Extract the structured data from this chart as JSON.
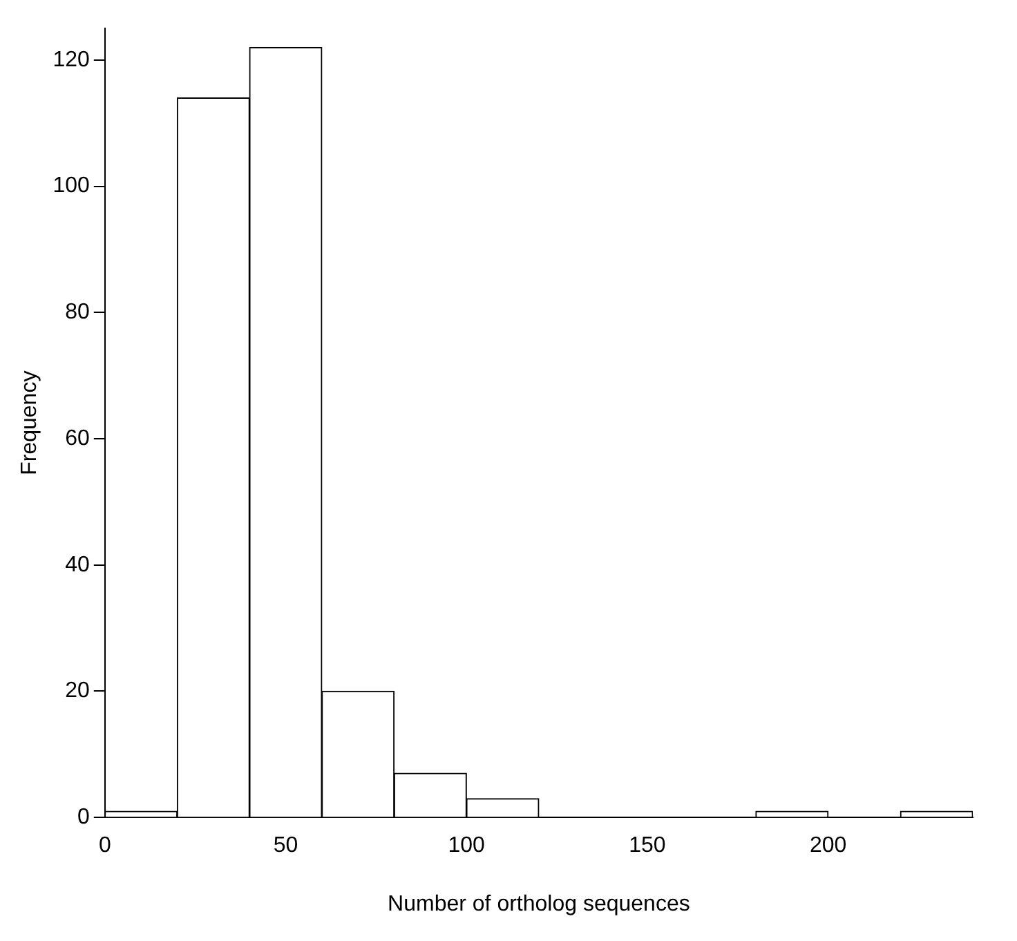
{
  "chart_data": {
    "type": "histogram",
    "xlabel": "Number of ortholog sequences",
    "ylabel": "Frequency",
    "bins": [
      0,
      20,
      40,
      60,
      80,
      100,
      120,
      140,
      160,
      180,
      200,
      220,
      240
    ],
    "values": [
      1,
      114,
      122,
      20,
      7,
      3,
      0,
      0,
      0,
      1,
      0,
      1
    ],
    "color": "#ffffff",
    "xlim": [
      0,
      240
    ],
    "xticks": [
      0,
      50,
      100,
      150,
      200
    ],
    "ylim": [
      0,
      125
    ],
    "yticks": [
      0,
      20,
      40,
      60,
      80,
      100,
      120
    ],
    "grid": false,
    "legend": false
  }
}
